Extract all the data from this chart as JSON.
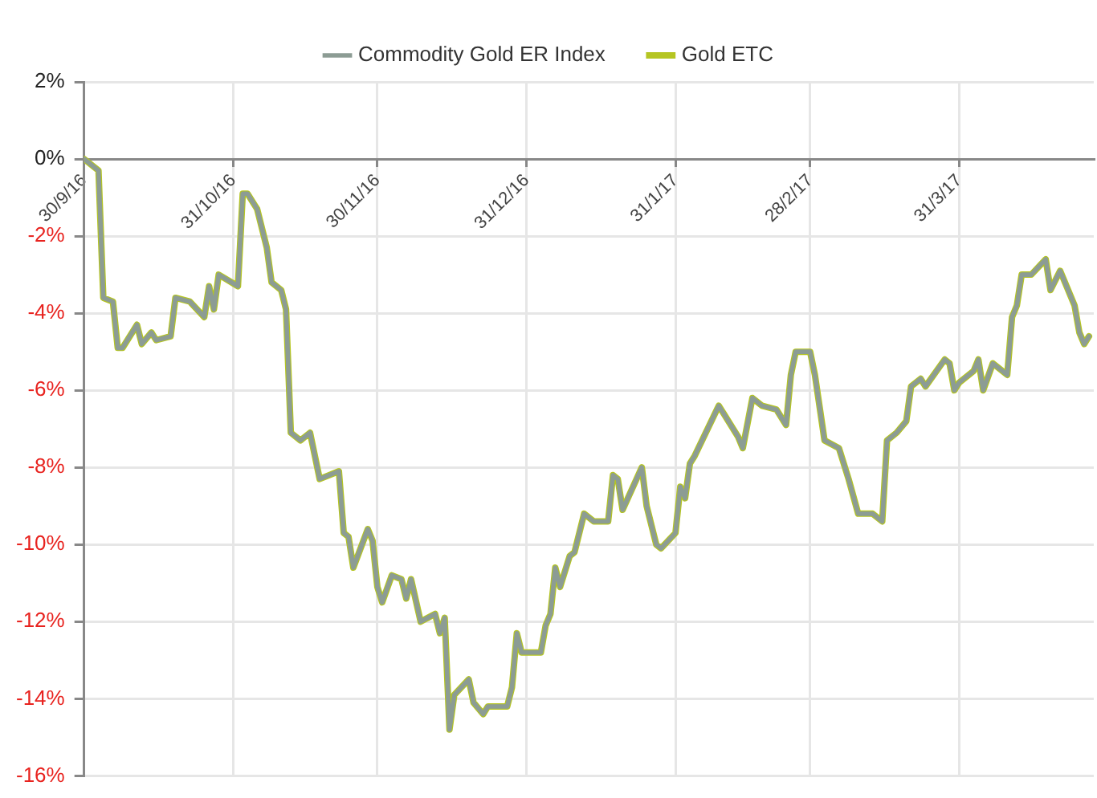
{
  "chart_data": {
    "type": "line",
    "x": [
      "2016-09-30",
      "2016-10-03",
      "2016-10-04",
      "2016-10-06",
      "2016-10-07",
      "2016-10-08",
      "2016-10-11",
      "2016-10-12",
      "2016-10-14",
      "2016-10-15",
      "2016-10-18",
      "2016-10-19",
      "2016-10-22",
      "2016-10-25",
      "2016-10-26",
      "2016-10-27",
      "2016-10-28",
      "2016-11-01",
      "2016-11-02",
      "2016-11-03",
      "2016-11-05",
      "2016-11-07",
      "2016-11-08",
      "2016-11-10",
      "2016-11-11",
      "2016-11-12",
      "2016-11-14",
      "2016-11-16",
      "2016-11-18",
      "2016-11-22",
      "2016-11-23",
      "2016-11-24",
      "2016-11-25",
      "2016-11-28",
      "2016-11-29",
      "2016-11-30",
      "2016-12-01",
      "2016-12-03",
      "2016-12-05",
      "2016-12-06",
      "2016-12-07",
      "2016-12-09",
      "2016-12-12",
      "2016-12-13",
      "2016-12-14",
      "2016-12-15",
      "2016-12-16",
      "2016-12-19",
      "2016-12-20",
      "2016-12-22",
      "2016-12-23",
      "2016-12-27",
      "2016-12-28",
      "2016-12-29",
      "2016-12-30",
      "2017-01-03",
      "2017-01-04",
      "2017-01-05",
      "2017-01-06",
      "2017-01-07",
      "2017-01-09",
      "2017-01-10",
      "2017-01-12",
      "2017-01-14",
      "2017-01-17",
      "2017-01-18",
      "2017-01-19",
      "2017-01-20",
      "2017-01-24",
      "2017-01-25",
      "2017-01-27",
      "2017-01-28",
      "2017-01-31",
      "2017-02-01",
      "2017-02-02",
      "2017-02-03",
      "2017-02-04",
      "2017-02-09",
      "2017-02-10",
      "2017-02-13",
      "2017-02-14",
      "2017-02-16",
      "2017-02-18",
      "2017-02-21",
      "2017-02-23",
      "2017-02-24",
      "2017-02-25",
      "2017-02-28",
      "2017-03-01",
      "2017-03-03",
      "2017-03-06",
      "2017-03-08",
      "2017-03-10",
      "2017-03-13",
      "2017-03-15",
      "2017-03-16",
      "2017-03-18",
      "2017-03-20",
      "2017-03-21",
      "2017-03-23",
      "2017-03-24",
      "2017-03-28",
      "2017-03-29",
      "2017-03-30",
      "2017-03-31",
      "2017-04-03",
      "2017-04-04",
      "2017-04-05",
      "2017-04-07",
      "2017-04-10",
      "2017-04-11",
      "2017-04-12",
      "2017-04-13",
      "2017-04-15",
      "2017-04-18",
      "2017-04-19",
      "2017-04-21",
      "2017-04-24",
      "2017-04-25",
      "2017-04-26",
      "2017-04-27"
    ],
    "series": [
      {
        "name": "Gold ETC",
        "color": "#b5c522",
        "values": [
          0,
          -0.3,
          -3.6,
          -3.7,
          -4.9,
          -4.9,
          -4.3,
          -4.8,
          -4.5,
          -4.7,
          -4.6,
          -3.6,
          -3.7,
          -4.1,
          -3.3,
          -3.9,
          -3.0,
          -3.3,
          -0.9,
          -0.9,
          -1.3,
          -2.3,
          -3.2,
          -3.4,
          -3.9,
          -7.1,
          -7.3,
          -7.1,
          -8.3,
          -8.1,
          -9.7,
          -9.8,
          -10.6,
          -9.6,
          -9.9,
          -11.1,
          -11.5,
          -10.8,
          -10.9,
          -11.4,
          -10.9,
          -12.0,
          -11.8,
          -12.3,
          -11.9,
          -14.8,
          -13.9,
          -13.5,
          -14.1,
          -14.4,
          -14.2,
          -14.2,
          -13.7,
          -12.3,
          -12.8,
          -12.8,
          -12.1,
          -11.8,
          -10.6,
          -11.1,
          -10.3,
          -10.2,
          -9.2,
          -9.4,
          -9.4,
          -8.2,
          -8.3,
          -9.1,
          -8.0,
          -9.0,
          -10.0,
          -10.1,
          -9.7,
          -8.5,
          -8.8,
          -7.9,
          -7.7,
          -6.4,
          -6.6,
          -7.2,
          -7.5,
          -6.2,
          -6.4,
          -6.5,
          -6.9,
          -5.6,
          -5.0,
          -5.0,
          -5.6,
          -7.3,
          -7.5,
          -8.3,
          -9.2,
          -9.2,
          -9.4,
          -7.3,
          -7.1,
          -6.8,
          -5.9,
          -5.7,
          -5.9,
          -5.2,
          -5.3,
          -6.0,
          -5.8,
          -5.5,
          -5.2,
          -6.0,
          -5.3,
          -5.6,
          -4.1,
          -3.8,
          -3.0,
          -3.0,
          -2.6,
          -3.4,
          -2.9,
          -3.8,
          -4.5,
          -4.8,
          -4.6
        ]
      },
      {
        "name": "Commodity Gold ER Index",
        "color": "#8c9c94",
        "values": [
          0,
          -0.3,
          -3.6,
          -3.7,
          -4.9,
          -4.9,
          -4.3,
          -4.8,
          -4.5,
          -4.7,
          -4.6,
          -3.6,
          -3.7,
          -4.1,
          -3.3,
          -3.9,
          -3.0,
          -3.3,
          -0.9,
          -0.9,
          -1.3,
          -2.3,
          -3.2,
          -3.4,
          -3.9,
          -7.1,
          -7.3,
          -7.1,
          -8.3,
          -8.1,
          -9.7,
          -9.8,
          -10.6,
          -9.6,
          -9.9,
          -11.1,
          -11.5,
          -10.8,
          -10.9,
          -11.4,
          -10.9,
          -12.0,
          -11.8,
          -12.3,
          -11.9,
          -14.8,
          -13.9,
          -13.5,
          -14.1,
          -14.4,
          -14.2,
          -14.2,
          -13.7,
          -12.3,
          -12.8,
          -12.8,
          -12.1,
          -11.8,
          -10.6,
          -11.1,
          -10.3,
          -10.2,
          -9.2,
          -9.4,
          -9.4,
          -8.2,
          -8.3,
          -9.1,
          -8.0,
          -9.0,
          -10.0,
          -10.1,
          -9.7,
          -8.5,
          -8.8,
          -7.9,
          -7.7,
          -6.4,
          -6.6,
          -7.2,
          -7.5,
          -6.2,
          -6.4,
          -6.5,
          -6.9,
          -5.6,
          -5.0,
          -5.0,
          -5.6,
          -7.3,
          -7.5,
          -8.3,
          -9.2,
          -9.2,
          -9.4,
          -7.3,
          -7.1,
          -6.8,
          -5.9,
          -5.7,
          -5.9,
          -5.2,
          -5.3,
          -6.0,
          -5.8,
          -5.5,
          -5.2,
          -6.0,
          -5.3,
          -5.6,
          -4.1,
          -3.8,
          -3.0,
          -3.0,
          -2.6,
          -3.4,
          -2.9,
          -3.8,
          -4.5,
          -4.8,
          -4.6
        ]
      }
    ],
    "xlim": [
      "2016-09-30",
      "2017-04-28"
    ],
    "xticks": [
      {
        "value": "2016-09-30",
        "label": "30/9/16"
      },
      {
        "value": "2016-10-31",
        "label": "31/10/16"
      },
      {
        "value": "2016-11-30",
        "label": "30/11/16"
      },
      {
        "value": "2016-12-31",
        "label": "31/12/16"
      },
      {
        "value": "2017-01-31",
        "label": "31/1/17"
      },
      {
        "value": "2017-02-28",
        "label": "28/2/17"
      },
      {
        "value": "2017-03-31",
        "label": "31/3/17"
      }
    ],
    "ylim": [
      -16,
      2
    ],
    "yticks": [
      {
        "value": -16,
        "label": "-16%"
      },
      {
        "value": -14,
        "label": "-14%"
      },
      {
        "value": -12,
        "label": "-12%"
      },
      {
        "value": -10,
        "label": "-10%"
      },
      {
        "value": -8,
        "label": "-8%"
      },
      {
        "value": -6,
        "label": "-6%"
      },
      {
        "value": -4,
        "label": "-4%"
      },
      {
        "value": -2,
        "label": "-2%"
      },
      {
        "value": 0,
        "label": "0%"
      },
      {
        "value": 2,
        "label": "2%"
      }
    ],
    "grid": true,
    "legend": "top",
    "marker": "none",
    "line_style": "solid"
  }
}
